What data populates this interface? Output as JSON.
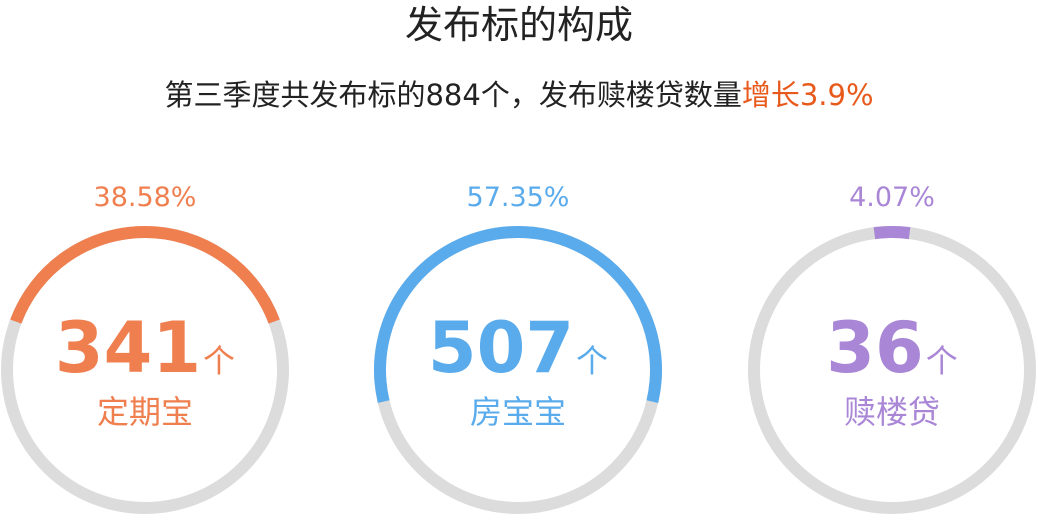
{
  "header": {
    "title": "发布标的构成",
    "subtitle_prefix": "第三季度共发布标的884个，发布赎楼贷数量",
    "subtitle_highlight": "增长3.9%"
  },
  "colors": {
    "track": "#dcdcdc",
    "highlight": "#e85a1b"
  },
  "chart_data": {
    "type": "pie",
    "title": "发布标的构成",
    "unit": "个",
    "items": [
      {
        "name": "定期宝",
        "count": "341",
        "percent_label": "38.58%",
        "percent": 38.58,
        "color": "#ef7f4f"
      },
      {
        "name": "房宝宝",
        "count": "507",
        "percent_label": "57.35%",
        "percent": 57.35,
        "color": "#5aabec"
      },
      {
        "name": "赎楼贷",
        "count": "36",
        "percent_label": "4.07%",
        "percent": 4.07,
        "color": "#a986d6"
      }
    ]
  }
}
